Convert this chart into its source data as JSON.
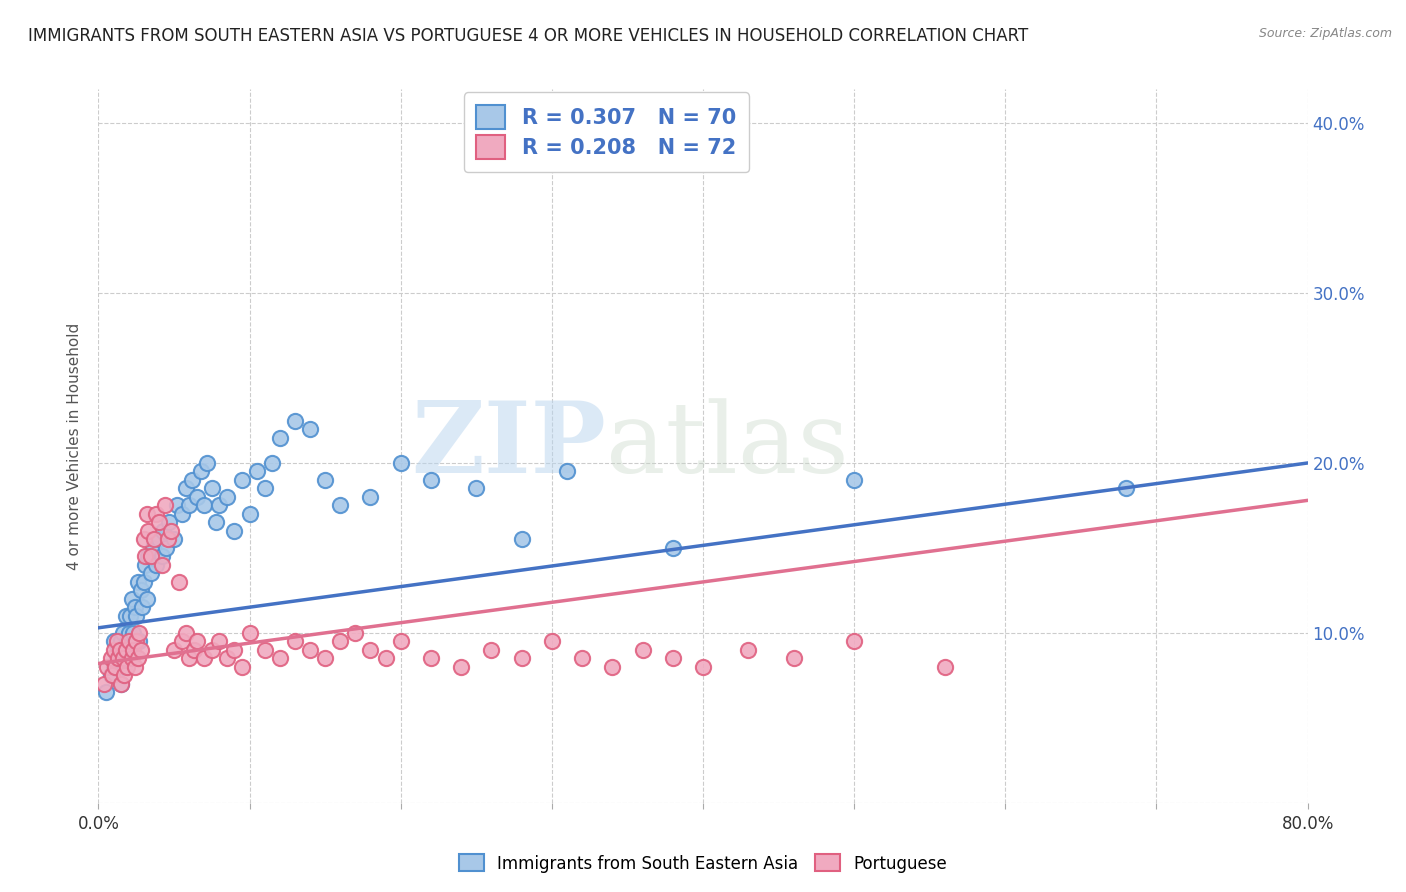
{
  "title": "IMMIGRANTS FROM SOUTH EASTERN ASIA VS PORTUGUESE 4 OR MORE VEHICLES IN HOUSEHOLD CORRELATION CHART",
  "source": "Source: ZipAtlas.com",
  "ylabel": "4 or more Vehicles in Household",
  "xlim": [
    0,
    0.8
  ],
  "ylim": [
    0,
    0.42
  ],
  "xtick_positions": [
    0.0,
    0.1,
    0.2,
    0.3,
    0.4,
    0.5,
    0.6,
    0.7,
    0.8
  ],
  "xticklabels": [
    "0.0%",
    "",
    "",
    "",
    "",
    "",
    "",
    "",
    "80.0%"
  ],
  "ytick_positions": [
    0.0,
    0.1,
    0.2,
    0.3,
    0.4
  ],
  "yticklabels_right": [
    "",
    "10.0%",
    "20.0%",
    "30.0%",
    "40.0%"
  ],
  "blue_R": 0.307,
  "blue_N": 70,
  "pink_R": 0.208,
  "pink_N": 72,
  "blue_color": "#a8c8e8",
  "pink_color": "#f0aac0",
  "blue_edge_color": "#5090d0",
  "pink_edge_color": "#e06080",
  "blue_line_color": "#4472c4",
  "pink_line_color": "#e07090",
  "legend_label_blue": "Immigrants from South Eastern Asia",
  "legend_label_pink": "Portuguese",
  "watermark_zip": "ZIP",
  "watermark_atlas": "atlas",
  "blue_line_x0": 0.0,
  "blue_line_y0": 0.103,
  "blue_line_x1": 0.8,
  "blue_line_y1": 0.2,
  "pink_line_x0": 0.0,
  "pink_line_y0": 0.082,
  "pink_line_x1": 0.8,
  "pink_line_y1": 0.178,
  "blue_scatter_x": [
    0.005,
    0.008,
    0.01,
    0.01,
    0.012,
    0.013,
    0.015,
    0.015,
    0.016,
    0.017,
    0.018,
    0.018,
    0.019,
    0.02,
    0.02,
    0.021,
    0.022,
    0.023,
    0.024,
    0.025,
    0.026,
    0.027,
    0.028,
    0.029,
    0.03,
    0.031,
    0.032,
    0.033,
    0.035,
    0.036,
    0.038,
    0.04,
    0.042,
    0.043,
    0.045,
    0.047,
    0.05,
    0.052,
    0.055,
    0.058,
    0.06,
    0.062,
    0.065,
    0.068,
    0.07,
    0.072,
    0.075,
    0.078,
    0.08,
    0.085,
    0.09,
    0.095,
    0.1,
    0.105,
    0.11,
    0.115,
    0.12,
    0.13,
    0.14,
    0.15,
    0.16,
    0.18,
    0.2,
    0.22,
    0.25,
    0.28,
    0.31,
    0.38,
    0.5,
    0.68
  ],
  "blue_scatter_y": [
    0.065,
    0.075,
    0.08,
    0.095,
    0.085,
    0.09,
    0.07,
    0.095,
    0.1,
    0.08,
    0.09,
    0.11,
    0.095,
    0.085,
    0.1,
    0.11,
    0.12,
    0.1,
    0.115,
    0.11,
    0.13,
    0.095,
    0.125,
    0.115,
    0.13,
    0.14,
    0.12,
    0.145,
    0.135,
    0.15,
    0.14,
    0.155,
    0.145,
    0.16,
    0.15,
    0.165,
    0.155,
    0.175,
    0.17,
    0.185,
    0.175,
    0.19,
    0.18,
    0.195,
    0.175,
    0.2,
    0.185,
    0.165,
    0.175,
    0.18,
    0.16,
    0.19,
    0.17,
    0.195,
    0.185,
    0.2,
    0.215,
    0.225,
    0.22,
    0.19,
    0.175,
    0.18,
    0.2,
    0.19,
    0.185,
    0.155,
    0.195,
    0.15,
    0.19,
    0.185
  ],
  "pink_scatter_x": [
    0.004,
    0.006,
    0.008,
    0.009,
    0.01,
    0.011,
    0.012,
    0.013,
    0.014,
    0.015,
    0.016,
    0.017,
    0.018,
    0.019,
    0.02,
    0.022,
    0.023,
    0.024,
    0.025,
    0.026,
    0.027,
    0.028,
    0.03,
    0.031,
    0.032,
    0.033,
    0.035,
    0.037,
    0.038,
    0.04,
    0.042,
    0.044,
    0.046,
    0.048,
    0.05,
    0.053,
    0.055,
    0.058,
    0.06,
    0.063,
    0.065,
    0.07,
    0.075,
    0.08,
    0.085,
    0.09,
    0.095,
    0.1,
    0.11,
    0.12,
    0.13,
    0.14,
    0.15,
    0.16,
    0.17,
    0.18,
    0.19,
    0.2,
    0.22,
    0.24,
    0.26,
    0.28,
    0.3,
    0.32,
    0.34,
    0.36,
    0.38,
    0.4,
    0.43,
    0.46,
    0.5,
    0.56
  ],
  "pink_scatter_y": [
    0.07,
    0.08,
    0.085,
    0.075,
    0.09,
    0.08,
    0.095,
    0.085,
    0.09,
    0.07,
    0.085,
    0.075,
    0.09,
    0.08,
    0.095,
    0.085,
    0.09,
    0.08,
    0.095,
    0.085,
    0.1,
    0.09,
    0.155,
    0.145,
    0.17,
    0.16,
    0.145,
    0.155,
    0.17,
    0.165,
    0.14,
    0.175,
    0.155,
    0.16,
    0.09,
    0.13,
    0.095,
    0.1,
    0.085,
    0.09,
    0.095,
    0.085,
    0.09,
    0.095,
    0.085,
    0.09,
    0.08,
    0.1,
    0.09,
    0.085,
    0.095,
    0.09,
    0.085,
    0.095,
    0.1,
    0.09,
    0.085,
    0.095,
    0.085,
    0.08,
    0.09,
    0.085,
    0.095,
    0.085,
    0.08,
    0.09,
    0.085,
    0.08,
    0.09,
    0.085,
    0.095,
    0.08
  ]
}
